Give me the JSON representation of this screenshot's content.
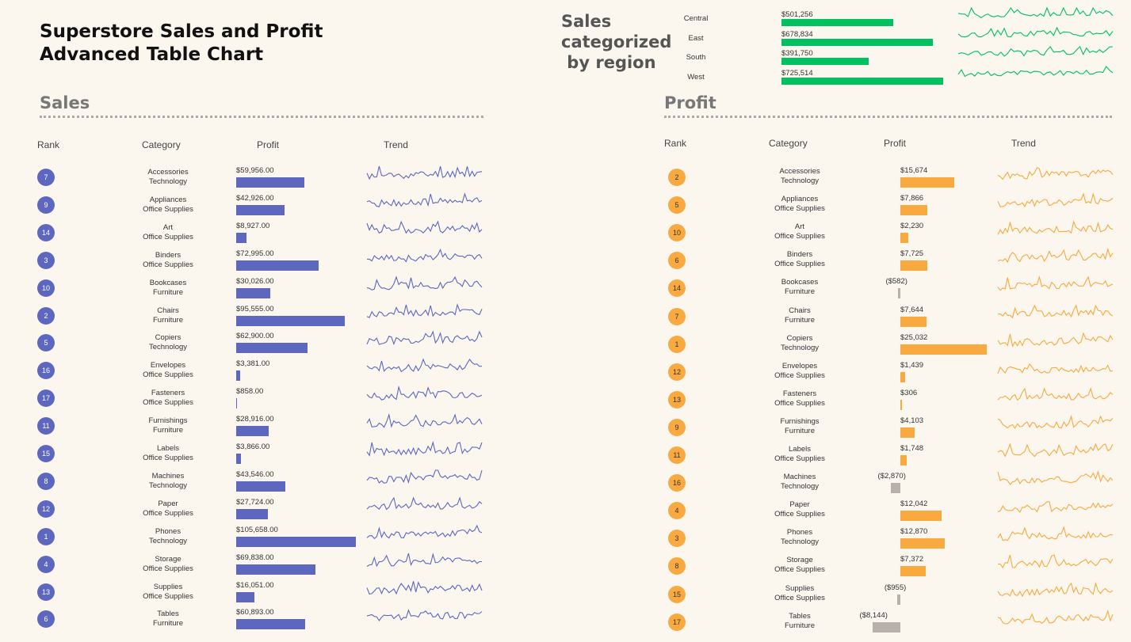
{
  "title_line1": "Superstore Sales and Profit",
  "title_line2": "Advanced Table Chart",
  "region_block": {
    "title_lines": [
      "Sales",
      "categorized",
      " by region"
    ],
    "color": "#00c060"
  },
  "sales_section": {
    "title": "Sales",
    "headers": {
      "rank": "Rank",
      "category": "Category",
      "value": "Profit",
      "trend": "Trend"
    },
    "color": "#5d67bf"
  },
  "profit_section": {
    "title": "Profit",
    "headers": {
      "rank": "Rank",
      "category": "Category",
      "value": "Profit",
      "trend": "Trend"
    },
    "color_positive": "#f8a93f",
    "color_negative": "#b8b0aa"
  },
  "chart_data": [
    {
      "type": "bar",
      "title": "Sales categorized by region",
      "categories": [
        "Central",
        "East",
        "South",
        "West"
      ],
      "values": [
        501256,
        678834,
        391750,
        725514
      ],
      "labels": [
        "$501,256",
        "$678,834",
        "$391,750",
        "$725,514"
      ]
    },
    {
      "type": "table",
      "title": "Sales",
      "columns": [
        "Rank",
        "Category",
        "Profit",
        "Trend"
      ],
      "rows": [
        {
          "rank": 7,
          "subcategory": "Accessories",
          "category": "Technology",
          "value": 59956,
          "label": "$59,956.00"
        },
        {
          "rank": 9,
          "subcategory": "Appliances",
          "category": "Office Supplies",
          "value": 42926,
          "label": "$42,926.00"
        },
        {
          "rank": 14,
          "subcategory": "Art",
          "category": "Office Supplies",
          "value": 8927,
          "label": "$8,927.00"
        },
        {
          "rank": 3,
          "subcategory": "Binders",
          "category": "Office Supplies",
          "value": 72995,
          "label": "$72,995.00"
        },
        {
          "rank": 10,
          "subcategory": "Bookcases",
          "category": "Furniture",
          "value": 30026,
          "label": "$30,026.00"
        },
        {
          "rank": 2,
          "subcategory": "Chairs",
          "category": "Furniture",
          "value": 95555,
          "label": "$95,555.00"
        },
        {
          "rank": 5,
          "subcategory": "Copiers",
          "category": "Technology",
          "value": 62900,
          "label": "$62,900.00"
        },
        {
          "rank": 16,
          "subcategory": "Envelopes",
          "category": "Office Supplies",
          "value": 3381,
          "label": "$3,381.00"
        },
        {
          "rank": 17,
          "subcategory": "Fasteners",
          "category": "Office Supplies",
          "value": 858,
          "label": "$858.00"
        },
        {
          "rank": 11,
          "subcategory": "Furnishings",
          "category": "Furniture",
          "value": 28916,
          "label": "$28,916.00"
        },
        {
          "rank": 15,
          "subcategory": "Labels",
          "category": "Office Supplies",
          "value": 3866,
          "label": "$3,866.00"
        },
        {
          "rank": 8,
          "subcategory": "Machines",
          "category": "Technology",
          "value": 43546,
          "label": "$43,546.00"
        },
        {
          "rank": 12,
          "subcategory": "Paper",
          "category": "Office Supplies",
          "value": 27724,
          "label": "$27,724.00"
        },
        {
          "rank": 1,
          "subcategory": "Phones",
          "category": "Technology",
          "value": 105658,
          "label": "$105,658.00"
        },
        {
          "rank": 4,
          "subcategory": "Storage",
          "category": "Office Supplies",
          "value": 69838,
          "label": "$69,838.00"
        },
        {
          "rank": 13,
          "subcategory": "Supplies",
          "category": "Office Supplies",
          "value": 16051,
          "label": "$16,051.00"
        },
        {
          "rank": 6,
          "subcategory": "Tables",
          "category": "Furniture",
          "value": 60893,
          "label": "$60,893.00"
        }
      ]
    },
    {
      "type": "table",
      "title": "Profit",
      "columns": [
        "Rank",
        "Category",
        "Profit",
        "Trend"
      ],
      "rows": [
        {
          "rank": 2,
          "subcategory": "Accessories",
          "category": "Technology",
          "value": 15674,
          "label": "$15,674"
        },
        {
          "rank": 5,
          "subcategory": "Appliances",
          "category": "Office Supplies",
          "value": 7866,
          "label": "$7,866"
        },
        {
          "rank": 10,
          "subcategory": "Art",
          "category": "Office Supplies",
          "value": 2230,
          "label": "$2,230"
        },
        {
          "rank": 6,
          "subcategory": "Binders",
          "category": "Office Supplies",
          "value": 7725,
          "label": "$7,725"
        },
        {
          "rank": 14,
          "subcategory": "Bookcases",
          "category": "Furniture",
          "value": -582,
          "label": "($582)"
        },
        {
          "rank": 7,
          "subcategory": "Chairs",
          "category": "Furniture",
          "value": 7644,
          "label": "$7,644"
        },
        {
          "rank": 1,
          "subcategory": "Copiers",
          "category": "Technology",
          "value": 25032,
          "label": "$25,032"
        },
        {
          "rank": 12,
          "subcategory": "Envelopes",
          "category": "Office Supplies",
          "value": 1439,
          "label": "$1,439"
        },
        {
          "rank": 13,
          "subcategory": "Fasteners",
          "category": "Office Supplies",
          "value": 306,
          "label": "$306"
        },
        {
          "rank": 9,
          "subcategory": "Furnishings",
          "category": "Furniture",
          "value": 4103,
          "label": "$4,103"
        },
        {
          "rank": 11,
          "subcategory": "Labels",
          "category": "Office Supplies",
          "value": 1748,
          "label": "$1,748"
        },
        {
          "rank": 16,
          "subcategory": "Machines",
          "category": "Technology",
          "value": -2870,
          "label": "($2,870)"
        },
        {
          "rank": 4,
          "subcategory": "Paper",
          "category": "Office Supplies",
          "value": 12042,
          "label": "$12,042"
        },
        {
          "rank": 3,
          "subcategory": "Phones",
          "category": "Technology",
          "value": 12870,
          "label": "$12,870"
        },
        {
          "rank": 8,
          "subcategory": "Storage",
          "category": "Office Supplies",
          "value": 7372,
          "label": "$7,372"
        },
        {
          "rank": 15,
          "subcategory": "Supplies",
          "category": "Office Supplies",
          "value": -955,
          "label": "($955)"
        },
        {
          "rank": 17,
          "subcategory": "Tables",
          "category": "Furniture",
          "value": -8144,
          "label": "($8,144)"
        }
      ]
    }
  ]
}
